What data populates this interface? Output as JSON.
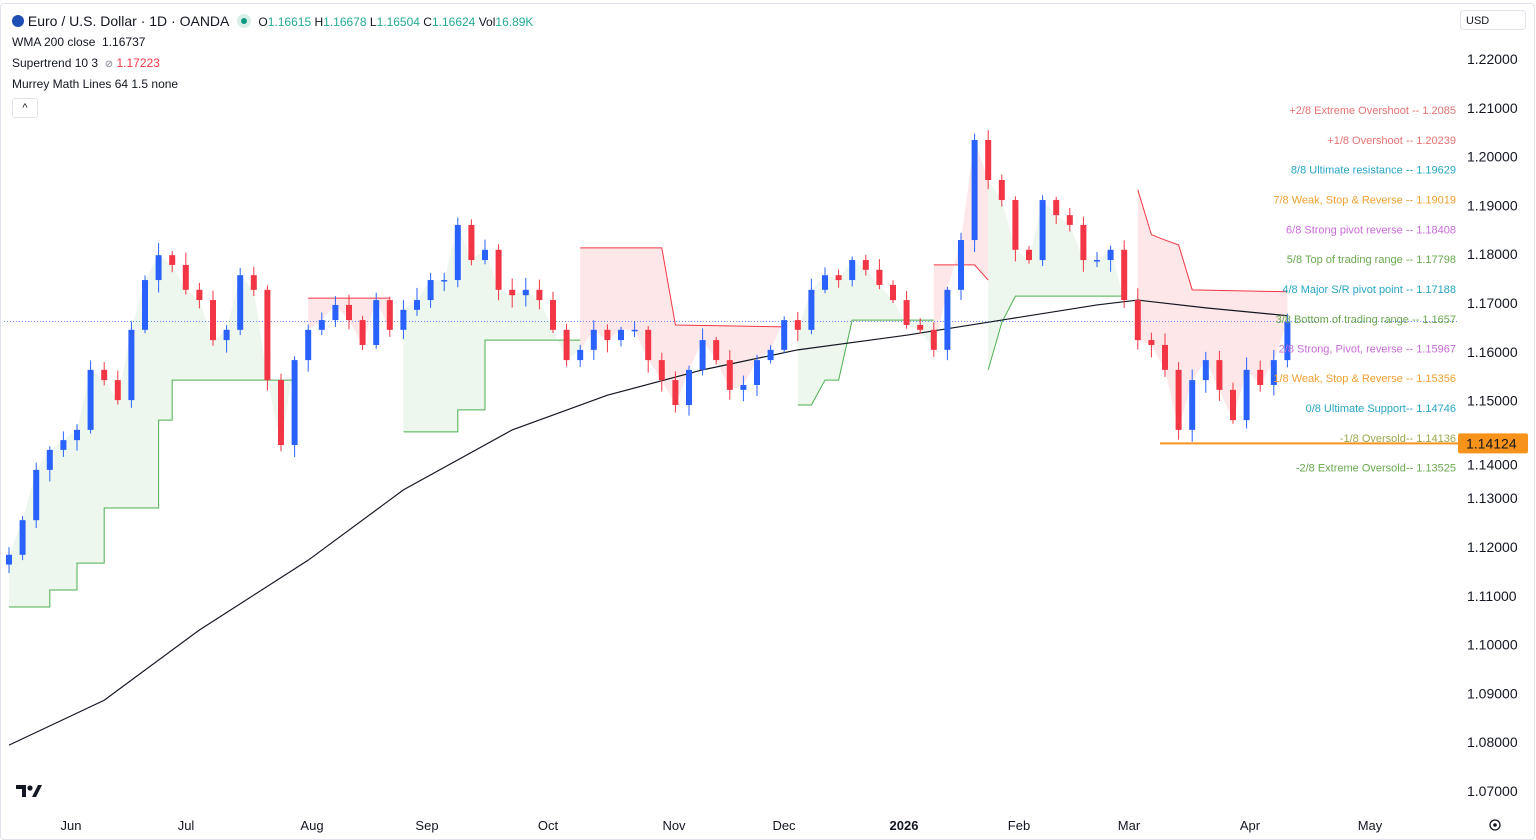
{
  "header": {
    "symbol": "Euro / U.S. Dollar · 1D · OANDA",
    "open_label": "O",
    "open": "1.16615",
    "high_label": "H",
    "high": "1.16678",
    "low_label": "L",
    "low": "1.16504",
    "close_label": "C",
    "close": "1.16624",
    "vol_label": "Vol",
    "vol": "16.89K",
    "indicators": [
      {
        "name": "WMA 200 close",
        "value": "1.16737"
      },
      {
        "name": "Supertrend 10 3",
        "symbol": "⊘",
        "value": "1.17223"
      },
      {
        "name": "Murrey Math Lines 64 1.5 none",
        "value": ""
      }
    ],
    "collapse_icon": "chevron-up"
  },
  "currency": "USD",
  "colors": {
    "up": "#2962ff",
    "down": "#f23645",
    "wma": "#131722",
    "st_up": "#4caf50",
    "st_down": "#f23645",
    "last_price": "#f7931a"
  },
  "chart_data": {
    "type": "candlestick",
    "ylim": [
      1.065,
      1.225
    ],
    "yticks": [
      "1.22000",
      "1.21000",
      "1.20000",
      "1.19000",
      "1.18000",
      "1.17000",
      "1.16000",
      "1.15000",
      "1.14000",
      "1.13000",
      "1.12000",
      "1.11000",
      "1.10000",
      "1.09000",
      "1.08000",
      "1.07000"
    ],
    "xticks": [
      "Jun",
      "Jul",
      "Aug",
      "Sep",
      "Oct",
      "Nov",
      "Dec",
      "2026",
      "Feb",
      "Mar",
      "Apr",
      "May"
    ],
    "closes": [
      1.1184,
      1.1255,
      1.1358,
      1.1399,
      1.1419,
      1.144,
      1.1563,
      1.1542,
      1.1501,
      1.1645,
      1.1747,
      1.1798,
      1.1778,
      1.1727,
      1.1706,
      1.1624,
      1.1645,
      1.1757,
      1.1727,
      1.1542,
      1.1409,
      1.1583,
      1.1645,
      1.1665,
      1.1696,
      1.1665,
      1.1614,
      1.1706,
      1.1645,
      1.1686,
      1.1706,
      1.1747,
      1.1747,
      1.186,
      1.1788,
      1.1809,
      1.1727,
      1.1716,
      1.1727,
      1.1706,
      1.1645,
      1.1583,
      1.1604,
      1.1645,
      1.1624,
      1.1645,
      1.1645,
      1.1583,
      1.1542,
      1.1491,
      1.1563,
      1.1624,
      1.1583,
      1.1522,
      1.1532,
      1.1583,
      1.1604,
      1.1665,
      1.1645,
      1.1727,
      1.1757,
      1.1747,
      1.1788,
      1.1768,
      1.1737,
      1.1706,
      1.1655,
      1.1645,
      1.1604,
      1.1727,
      1.1829,
      1.2034,
      1.1952,
      1.1911,
      1.1809,
      1.1788,
      1.1911,
      1.188,
      1.186,
      1.1788,
      1.1788,
      1.1809,
      1.1706,
      1.1624,
      1.1614,
      1.1563,
      1.144,
      1.1542,
      1.1583,
      1.1522,
      1.146,
      1.1563,
      1.1532,
      1.1583,
      1.1662
    ],
    "wma200": [
      [
        0,
        1.0794
      ],
      [
        7,
        1.0886
      ],
      [
        14,
        1.103
      ],
      [
        22,
        1.1173
      ],
      [
        29,
        1.1317
      ],
      [
        37,
        1.144
      ],
      [
        44,
        1.1511
      ],
      [
        51,
        1.1563
      ],
      [
        58,
        1.1604
      ],
      [
        66,
        1.1634
      ],
      [
        73,
        1.1665
      ],
      [
        80,
        1.1696
      ],
      [
        83,
        1.1706
      ],
      [
        88,
        1.169
      ],
      [
        94,
        1.1674
      ]
    ],
    "supertrend": [
      {
        "dir": "up",
        "points": [
          [
            0,
            1.1077
          ],
          [
            3,
            1.1077
          ],
          [
            3,
            1.1112
          ],
          [
            5,
            1.1112
          ],
          [
            5,
            1.1167
          ],
          [
            7,
            1.1167
          ],
          [
            7,
            1.128
          ],
          [
            11,
            1.128
          ],
          [
            11,
            1.146
          ],
          [
            12,
            1.146
          ],
          [
            12,
            1.1542
          ],
          [
            21,
            1.1542
          ]
        ]
      },
      {
        "dir": "down",
        "points": [
          [
            22,
            1.171
          ],
          [
            28,
            1.171
          ]
        ]
      },
      {
        "dir": "up",
        "points": [
          [
            29,
            1.1436
          ],
          [
            33,
            1.1436
          ],
          [
            33,
            1.1481
          ],
          [
            35,
            1.1481
          ],
          [
            35,
            1.1624
          ],
          [
            42,
            1.1624
          ]
        ]
      },
      {
        "dir": "down",
        "points": [
          [
            42,
            1.1813
          ],
          [
            48,
            1.1813
          ],
          [
            49,
            1.1655
          ],
          [
            57,
            1.1651
          ]
        ]
      },
      {
        "dir": "up",
        "points": [
          [
            58,
            1.1491
          ],
          [
            59,
            1.1491
          ],
          [
            60,
            1.1542
          ],
          [
            61,
            1.1542
          ],
          [
            62,
            1.1665
          ],
          [
            68,
            1.1665
          ]
        ]
      },
      {
        "dir": "down",
        "points": [
          [
            68,
            1.1778
          ],
          [
            71,
            1.1778
          ],
          [
            72,
            1.1747
          ]
        ]
      },
      {
        "dir": "up",
        "points": [
          [
            72,
            1.1563
          ],
          [
            73,
            1.166
          ],
          [
            74,
            1.1714
          ],
          [
            82,
            1.1714
          ]
        ]
      },
      {
        "dir": "down",
        "points": [
          [
            83,
            1.1932
          ],
          [
            84,
            1.184
          ],
          [
            85,
            1.1829
          ],
          [
            86,
            1.1819
          ],
          [
            87,
            1.1727
          ],
          [
            94,
            1.1723
          ]
        ]
      }
    ],
    "murrey": [
      {
        "label": "+2/8 Extreme Overshoot --  1.2085",
        "value": 1.2085,
        "color": "#e57373"
      },
      {
        "label": "+1/8 Overshoot --  1.20239",
        "value": 1.20239,
        "color": "#e57373"
      },
      {
        "label": "8/8 Ultimate resistance --  1.19629",
        "value": 1.19629,
        "color": "#26a6c4"
      },
      {
        "label": "7/8 Weak, Stop & Reverse --  1.19019",
        "value": 1.19019,
        "color": "#f0a030"
      },
      {
        "label": "6/8 Strong pivot reverse --  1.18408",
        "value": 1.18408,
        "color": "#c86dd7"
      },
      {
        "label": "5/8 Top of trading range --  1.17798",
        "value": 1.17798,
        "color": "#6aa84f"
      },
      {
        "label": "4/8 Major S/R pivot point --  1.17188",
        "value": 1.17188,
        "color": "#26a6c4"
      },
      {
        "label": "3/8 Bottom of trading range --  1.1657",
        "value": 1.1657,
        "color": "#6aa84f"
      },
      {
        "label": "2/8 Strong, Pivot, reverse --  1.15967",
        "value": 1.15967,
        "color": "#c86dd7"
      },
      {
        "label": "1/8 Weak, Stop & Reverse --  1.15356",
        "value": 1.15356,
        "color": "#f0a030"
      },
      {
        "label": "0/8 Ultimate Support--  1.14746",
        "value": 1.14746,
        "color": "#26a6c4"
      },
      {
        "label": "-1/8 Oversold--  1.14136",
        "value": 1.14136,
        "color": "#9aa84f"
      },
      {
        "label": "-2/8 Extreme Oversold--  1.13525",
        "value": 1.13525,
        "color": "#6aa84f"
      }
    ],
    "current_price_line": 1.1662,
    "price_label": "1.14124",
    "price_label_value": 1.14124
  }
}
